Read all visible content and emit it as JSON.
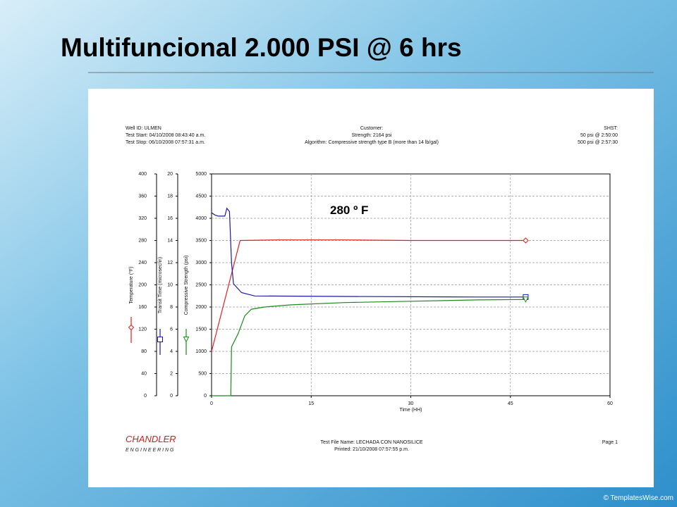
{
  "slide": {
    "title": "Multifuncional 2.000 PSI @ 6 hrs",
    "watermark": "© TemplatesWise.com"
  },
  "report": {
    "header_left": [
      "Well ID: ULMEN",
      "Test Start: 04/10/2008 08:43:40 a.m.",
      "Test Stop: 06/10/2008 07:57:31 a.m."
    ],
    "header_center": [
      "Customer:",
      "Strength: 2164 psi",
      "Algorithm: Compressive strength type B (more than 14 lb/gal)"
    ],
    "header_right": [
      "SHST:",
      "50 psi @ 2:50:00",
      "500 psi @ 2:57:30"
    ],
    "footer_center": [
      "Test File Name: LECHADA CON NANOSILICE",
      "Printed: 21/10/2008 07:57:55 p.m."
    ],
    "footer_right": "Page 1",
    "logo": "CHANDLER",
    "logo_sub": "E N G I N E E R I N G"
  },
  "chart_data": {
    "type": "line",
    "annotation": "280 º F",
    "xlabel": "Time (HH)",
    "xlim": [
      0,
      60
    ],
    "xticks": [
      0,
      15,
      30,
      45,
      60
    ],
    "ylim": [
      0,
      400
    ],
    "yticks": [
      0,
      40,
      80,
      120,
      160,
      200,
      240,
      280,
      320,
      360,
      400
    ],
    "y2lim": [
      0,
      20
    ],
    "y2ticks": [
      0,
      2,
      4,
      6,
      8,
      10,
      12,
      14,
      16,
      18,
      20
    ],
    "y3lim": [
      0,
      5000
    ],
    "y3ticks": [
      0,
      500,
      1000,
      1500,
      2000,
      2500,
      3000,
      3500,
      4000,
      4500,
      5000
    ],
    "grid": true,
    "series": [
      {
        "name": "Temperature (°F)",
        "color": "#e02020",
        "axis": "y",
        "marker": "diamond",
        "x": [
          0,
          4.3,
          10,
          20,
          30,
          40,
          47.3
        ],
        "values": [
          80,
          280,
          281,
          281,
          280,
          280,
          280
        ]
      },
      {
        "name": "Transit Time (microsec/in)",
        "color": "#1a1aa0",
        "axis": "y2",
        "marker": "square",
        "x": [
          0,
          0.5,
          1,
          2,
          2.3,
          2.7,
          3.0,
          3.3,
          4.5,
          6.5,
          20,
          40,
          47.3
        ],
        "values": [
          16.5,
          16.3,
          16.2,
          16.2,
          16.9,
          16.6,
          12,
          10.1,
          9.3,
          9.0,
          8.95,
          8.9,
          8.9
        ]
      },
      {
        "name": "Compressive Strength (psi)",
        "color": "#1a8a1a",
        "axis": "y3",
        "marker": "triangle",
        "x": [
          0,
          2.9,
          3.0,
          4,
          5,
          6,
          8,
          12,
          20,
          30,
          40,
          47.3
        ],
        "values": [
          0,
          0,
          1100,
          1400,
          1800,
          1950,
          2000,
          2050,
          2100,
          2130,
          2160,
          2170
        ]
      }
    ]
  }
}
